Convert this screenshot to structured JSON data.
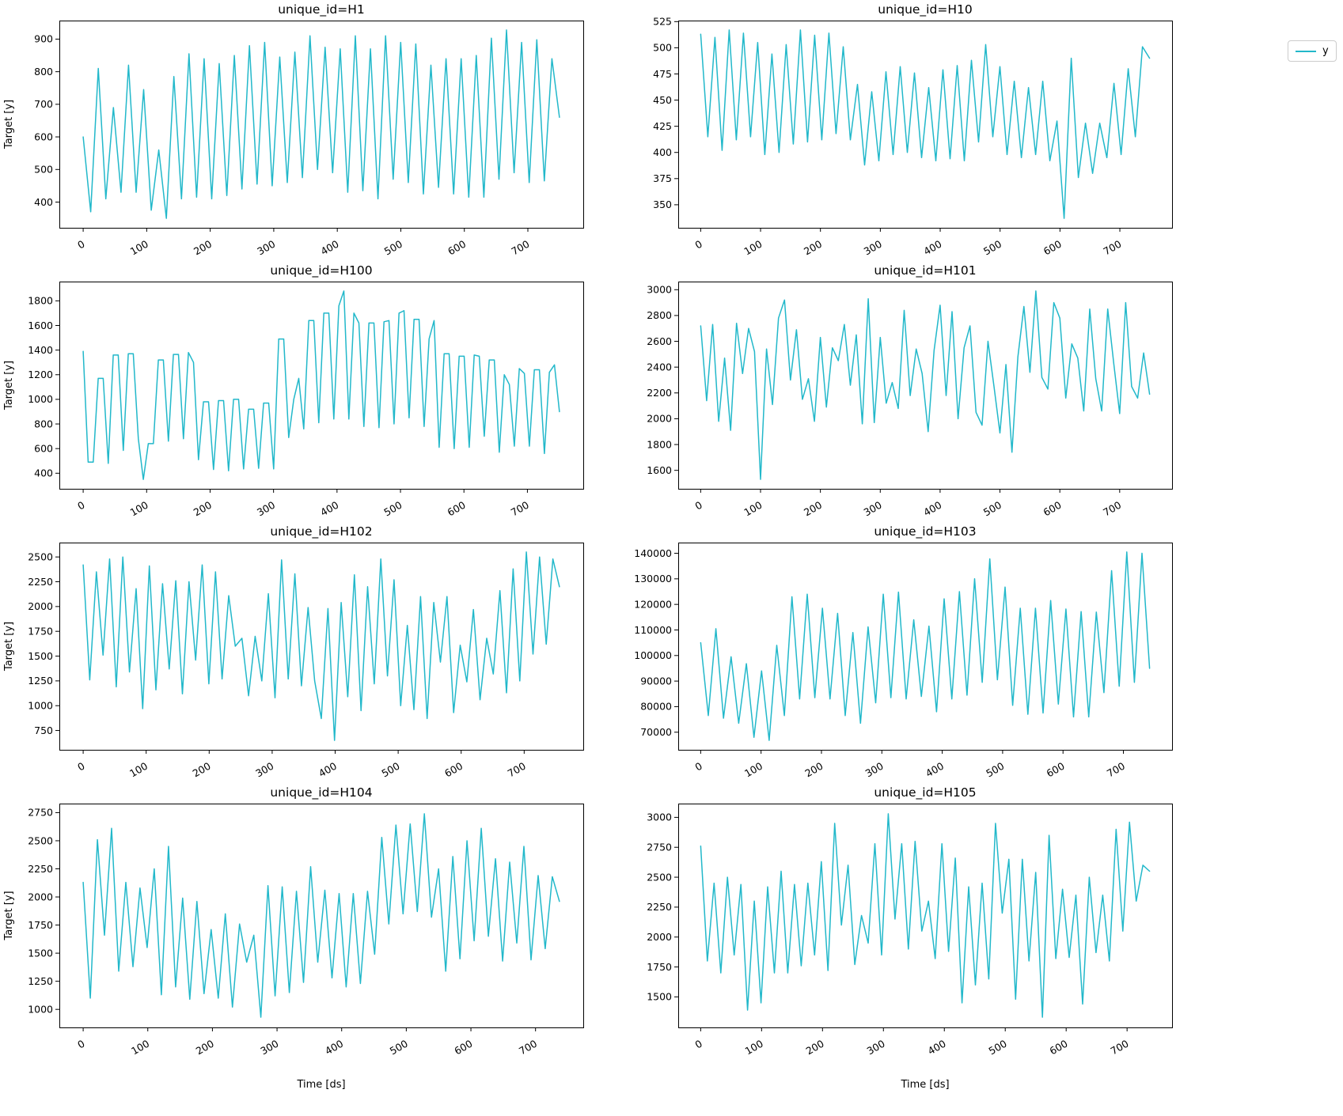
{
  "figure": {
    "background": "#ffffff",
    "line_color": "#22b8ca",
    "axis_color": "#000000",
    "legend": {
      "label": "y"
    }
  },
  "chart_data": [
    {
      "id": "H1",
      "type": "line",
      "title": "unique_id=H1",
      "ylabel": "Target [y]",
      "xlabel": "",
      "series_name": "y",
      "xticks": [
        0,
        100,
        200,
        300,
        400,
        500,
        600,
        700
      ],
      "yticks": [
        400,
        500,
        600,
        700,
        800,
        900
      ],
      "x_range": [
        0,
        750
      ],
      "ds_step": 11.9,
      "values": [
        600,
        370,
        810,
        410,
        690,
        430,
        820,
        430,
        745,
        375,
        560,
        350,
        785,
        410,
        855,
        415,
        840,
        410,
        825,
        420,
        850,
        440,
        880,
        455,
        890,
        450,
        845,
        460,
        860,
        475,
        910,
        500,
        875,
        490,
        870,
        430,
        910,
        435,
        870,
        410,
        910,
        470,
        890,
        460,
        885,
        425,
        820,
        445,
        840,
        425,
        840,
        415,
        850,
        415,
        903,
        470,
        928,
        490,
        890,
        460,
        898,
        465,
        840,
        660
      ]
    },
    {
      "id": "H10",
      "type": "line",
      "title": "unique_id=H10",
      "ylabel": "",
      "xlabel": "",
      "series_name": "y",
      "xticks": [
        0,
        100,
        200,
        300,
        400,
        500,
        600,
        700
      ],
      "yticks": [
        350,
        375,
        400,
        425,
        450,
        475,
        500,
        525
      ],
      "x_range": [
        0,
        750
      ],
      "ds_step": 11.9,
      "values": [
        513,
        415,
        510,
        402,
        517,
        412,
        514,
        415,
        505,
        398,
        494,
        400,
        503,
        408,
        517,
        410,
        512,
        412,
        514,
        418,
        501,
        412,
        465,
        388,
        458,
        392,
        477,
        398,
        482,
        400,
        476,
        395,
        462,
        392,
        479,
        394,
        483,
        392,
        488,
        410,
        503,
        415,
        482,
        398,
        468,
        395,
        462,
        398,
        468,
        392,
        430,
        337,
        490,
        376,
        428,
        380,
        428,
        395,
        466,
        398,
        480,
        415,
        501,
        490
      ]
    },
    {
      "id": "H100",
      "type": "line",
      "title": "unique_id=H100",
      "ylabel": "Target [y]",
      "xlabel": "",
      "series_name": "y",
      "xticks": [
        0,
        100,
        200,
        300,
        400,
        500,
        600,
        700
      ],
      "yticks": [
        400,
        600,
        800,
        1000,
        1200,
        1400,
        1600,
        1800
      ],
      "x_range": [
        0,
        750
      ],
      "ds_step": 7.9,
      "values": [
        1390,
        490,
        490,
        1170,
        1170,
        480,
        1360,
        1360,
        585,
        1370,
        1370,
        680,
        350,
        640,
        640,
        1320,
        1320,
        660,
        1365,
        1365,
        680,
        1380,
        1300,
        510,
        980,
        980,
        430,
        990,
        990,
        420,
        1000,
        1000,
        435,
        920,
        920,
        440,
        970,
        970,
        435,
        1490,
        1490,
        690,
        1000,
        1170,
        760,
        1640,
        1640,
        810,
        1700,
        1700,
        840,
        1760,
        1880,
        840,
        1700,
        1620,
        780,
        1620,
        1620,
        770,
        1630,
        1640,
        800,
        1700,
        1720,
        850,
        1650,
        1650,
        780,
        1490,
        1640,
        610,
        1370,
        1370,
        600,
        1350,
        1350,
        610,
        1360,
        1350,
        700,
        1320,
        1320,
        570,
        1200,
        1120,
        620,
        1250,
        1210,
        620,
        1240,
        1240,
        560,
        1220,
        1280,
        900
      ]
    },
    {
      "id": "H101",
      "type": "line",
      "title": "unique_id=H101",
      "ylabel": "",
      "xlabel": "",
      "series_name": "y",
      "xticks": [
        0,
        100,
        200,
        300,
        400,
        500,
        600,
        700
      ],
      "yticks": [
        1600,
        1800,
        2000,
        2200,
        2400,
        2600,
        2800,
        3000
      ],
      "x_range": [
        0,
        750
      ],
      "ds_step": 10,
      "values": [
        2720,
        2140,
        2730,
        1980,
        2470,
        1910,
        2740,
        2350,
        2700,
        2520,
        1530,
        2540,
        2110,
        2780,
        2920,
        2300,
        2690,
        2150,
        2310,
        1980,
        2630,
        2090,
        2550,
        2450,
        2730,
        2260,
        2650,
        1960,
        2930,
        1970,
        2630,
        2120,
        2280,
        2080,
        2840,
        2180,
        2540,
        2350,
        1900,
        2530,
        2880,
        2180,
        2830,
        2000,
        2550,
        2720,
        2050,
        1950,
        2600,
        2250,
        1890,
        2420,
        1740,
        2480,
        2870,
        2360,
        2990,
        2320,
        2230,
        2900,
        2780,
        2160,
        2580,
        2470,
        2060,
        2850,
        2310,
        2060,
        2850,
        2430,
        2040,
        2900,
        2250,
        2160,
        2510,
        2190
      ]
    },
    {
      "id": "H102",
      "type": "line",
      "title": "unique_id=H102",
      "ylabel": "Target [y]",
      "xlabel": "",
      "series_name": "y",
      "xticks": [
        0,
        100,
        200,
        300,
        400,
        500,
        600,
        700
      ],
      "yticks": [
        750,
        1000,
        1250,
        1500,
        1750,
        2000,
        2250,
        2500
      ],
      "x_range": [
        0,
        750
      ],
      "ds_step": 10.5,
      "values": [
        2420,
        1260,
        2350,
        1510,
        2480,
        1190,
        2500,
        1340,
        2180,
        970,
        2410,
        1160,
        2230,
        1370,
        2260,
        1120,
        2250,
        1460,
        2420,
        1220,
        2350,
        1270,
        2110,
        1600,
        1680,
        1100,
        1700,
        1250,
        2130,
        1080,
        2470,
        1270,
        2330,
        1200,
        1990,
        1250,
        870,
        1980,
        650,
        2040,
        1090,
        2320,
        950,
        2200,
        1220,
        2480,
        1300,
        2270,
        1000,
        1810,
        960,
        2100,
        870,
        2040,
        1440,
        2100,
        930,
        1610,
        1240,
        1970,
        1060,
        1680,
        1320,
        2160,
        1130,
        2380,
        1250,
        2550,
        1520,
        2500,
        1620,
        2480,
        2200
      ]
    },
    {
      "id": "H103",
      "type": "line",
      "title": "unique_id=H103",
      "ylabel": "",
      "xlabel": "",
      "series_name": "y",
      "xticks": [
        0,
        100,
        200,
        300,
        400,
        500,
        600,
        700
      ],
      "yticks": [
        70000,
        80000,
        90000,
        100000,
        110000,
        120000,
        130000,
        140000
      ],
      "x_range": [
        0,
        750
      ],
      "ds_step": 12.6,
      "values": [
        105000,
        76500,
        110500,
        75500,
        99500,
        73500,
        96800,
        68000,
        94000,
        66800,
        104000,
        76500,
        123000,
        83000,
        124000,
        83500,
        118500,
        83000,
        116500,
        76500,
        109000,
        73500,
        111200,
        81500,
        124000,
        83500,
        124800,
        83000,
        114000,
        84000,
        111500,
        78000,
        122200,
        83000,
        125000,
        84500,
        130000,
        89500,
        137800,
        90500,
        126800,
        80500,
        118500,
        77000,
        118500,
        77500,
        121500,
        81000,
        118200,
        76000,
        117200,
        76000,
        117000,
        85500,
        133200,
        88000,
        140500,
        89500,
        140000,
        95000
      ]
    },
    {
      "id": "H104",
      "type": "line",
      "title": "unique_id=H104",
      "ylabel": "Target [y]",
      "xlabel": "Time [ds]",
      "series_name": "y",
      "xticks": [
        0,
        100,
        200,
        300,
        400,
        500,
        600,
        700
      ],
      "yticks": [
        1000,
        1250,
        1500,
        1750,
        2000,
        2250,
        2500,
        2750
      ],
      "x_range": [
        0,
        750
      ],
      "ds_step": 11,
      "values": [
        2130,
        1100,
        2510,
        1660,
        2610,
        1340,
        2130,
        1380,
        2080,
        1550,
        2250,
        1130,
        2450,
        1200,
        1990,
        1090,
        1960,
        1140,
        1710,
        1100,
        1850,
        1020,
        1760,
        1420,
        1660,
        930,
        2100,
        1120,
        2090,
        1150,
        2050,
        1240,
        2270,
        1420,
        2060,
        1280,
        2030,
        1200,
        2030,
        1230,
        2050,
        1490,
        2530,
        1760,
        2640,
        1850,
        2650,
        1870,
        2740,
        1820,
        2250,
        1340,
        2360,
        1450,
        2500,
        1610,
        2610,
        1650,
        2340,
        1430,
        2310,
        1590,
        2450,
        1440,
        2190,
        1540,
        2180,
        1960
      ]
    },
    {
      "id": "H105",
      "type": "line",
      "title": "unique_id=H105",
      "ylabel": "",
      "xlabel": "Time [ds]",
      "series_name": "y",
      "xticks": [
        0,
        100,
        200,
        300,
        400,
        500,
        600,
        700
      ],
      "yticks": [
        1500,
        1750,
        2000,
        2250,
        2500,
        2750,
        3000
      ],
      "x_range": [
        0,
        750
      ],
      "ds_step": 11,
      "values": [
        2760,
        1800,
        2450,
        1700,
        2500,
        1850,
        2440,
        1390,
        2300,
        1450,
        2420,
        1700,
        2550,
        1700,
        2440,
        1760,
        2450,
        1850,
        2630,
        1720,
        2950,
        2100,
        2600,
        1770,
        2180,
        1950,
        2780,
        1850,
        3030,
        2150,
        2780,
        1900,
        2800,
        2050,
        2300,
        1820,
        2780,
        1880,
        2660,
        1450,
        2420,
        1600,
        2450,
        1650,
        2950,
        2200,
        2650,
        1480,
        2650,
        1800,
        2540,
        1330,
        2850,
        1820,
        2400,
        1830,
        2350,
        1440,
        2500,
        1870,
        2350,
        1800,
        2900,
        2050,
        2960,
        2300,
        2600,
        2550
      ]
    }
  ]
}
